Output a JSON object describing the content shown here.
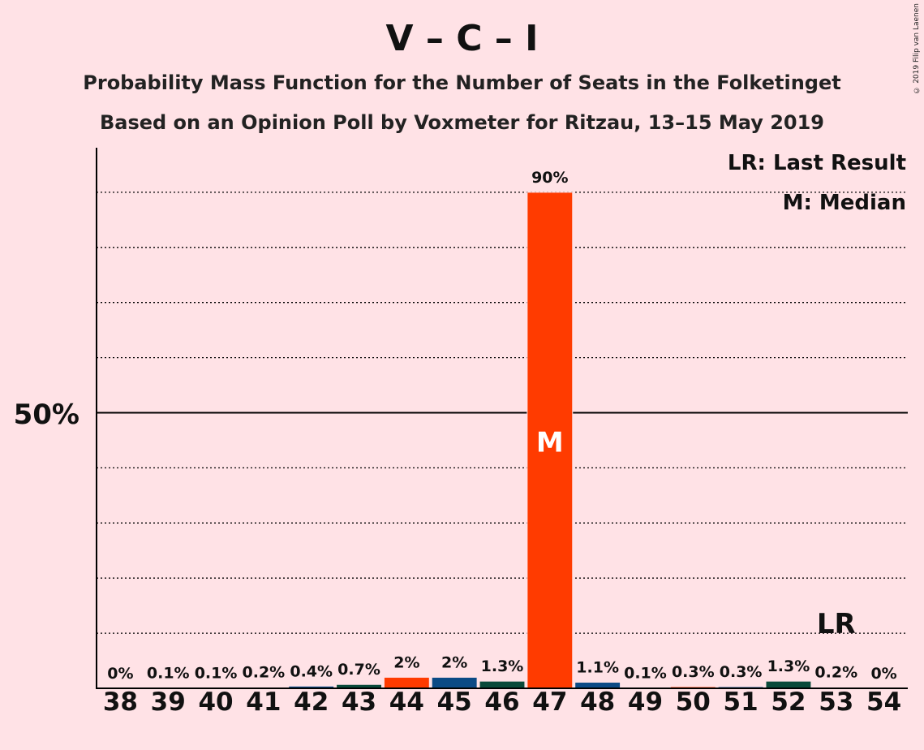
{
  "title": "V – C – I",
  "subtitle1": "Probability Mass Function for the Number of Seats in the Folketinget",
  "subtitle2": "Based on an Opinion Poll by Voxmeter for Ritzau, 13–15 May 2019",
  "copyright": "© 2019 Filip van Laenen",
  "legend": {
    "last_result": "LR: Last Result",
    "median": "M: Median"
  },
  "markers": {
    "median_label": "M",
    "last_result_label": "LR"
  },
  "colors": {
    "background": "#FFE2E6",
    "V": "#FF3B00",
    "C": "#0B4A85",
    "I": "#0A4A3A",
    "axis": "#000000"
  },
  "chart_data": {
    "type": "bar",
    "ylabel_tick": "50%",
    "ylim": [
      0,
      100
    ],
    "gridlines": [
      10,
      20,
      30,
      40,
      60,
      70,
      80,
      90
    ],
    "median_seat": 47,
    "last_result_seat": 53,
    "categories": [
      "38",
      "39",
      "40",
      "41",
      "42",
      "43",
      "44",
      "45",
      "46",
      "47",
      "48",
      "49",
      "50",
      "51",
      "52",
      "53",
      "54"
    ],
    "values": [
      0,
      0.1,
      0.1,
      0.2,
      0.4,
      0.7,
      2,
      2,
      1.3,
      90,
      1.1,
      0.1,
      0.3,
      0.3,
      1.3,
      0.2,
      0
    ],
    "labels": [
      "0%",
      "0.1%",
      "0.1%",
      "0.2%",
      "0.4%",
      "0.7%",
      "2%",
      "2%",
      "1.3%",
      "90%",
      "1.1%",
      "0.1%",
      "0.3%",
      "0.3%",
      "1.3%",
      "0.2%",
      "0%"
    ],
    "bar_colors": [
      "V",
      "C",
      "I",
      "V",
      "C",
      "I",
      "V",
      "C",
      "I",
      "V",
      "C",
      "I",
      "V",
      "C",
      "I",
      "V",
      "C"
    ]
  }
}
